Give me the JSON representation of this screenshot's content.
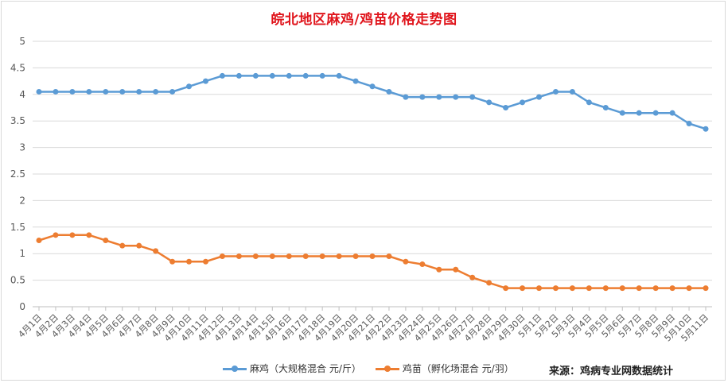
{
  "chart_data": {
    "type": "line",
    "title": "皖北地区麻鸡/鸡苗价格走势图",
    "xlabel": "",
    "ylabel": "",
    "ylim": [
      0,
      5
    ],
    "yticks": [
      "0",
      "0.5",
      "1",
      "1.5",
      "2",
      "2.5",
      "3",
      "3.5",
      "4",
      "4.5",
      "5"
    ],
    "grid": true,
    "legend_position": "bottom",
    "categories": [
      "4月1日",
      "4月2日",
      "4月3日",
      "4月4日",
      "4月5日",
      "4月6日",
      "4月7日",
      "4月8日",
      "4月9日",
      "4月10日",
      "4月11日",
      "4月12日",
      "4月13日",
      "4月14日",
      "4月15日",
      "4月16日",
      "4月17日",
      "4月18日",
      "4月19日",
      "4月20日",
      "4月21日",
      "4月22日",
      "4月23日",
      "4月24日",
      "4月25日",
      "4月26日",
      "4月27日",
      "4月28日",
      "4月29日",
      "4月30日",
      "5月1日",
      "5月2日",
      "5月3日",
      "5月4日",
      "5月5日",
      "5月6日",
      "5月7日",
      "5月8日",
      "5月9日",
      "5月10日",
      "5月11日"
    ],
    "series": [
      {
        "name": "麻鸡（大规格混合 元/斤）",
        "color": "#5b9bd5",
        "values": [
          4.05,
          4.05,
          4.05,
          4.05,
          4.05,
          4.05,
          4.05,
          4.05,
          4.05,
          4.15,
          4.25,
          4.35,
          4.35,
          4.35,
          4.35,
          4.35,
          4.35,
          4.35,
          4.35,
          4.25,
          4.15,
          4.05,
          3.95,
          3.95,
          3.95,
          3.95,
          3.95,
          3.85,
          3.75,
          3.85,
          3.95,
          4.05,
          4.05,
          3.85,
          3.75,
          3.65,
          3.65,
          3.65,
          3.65,
          3.45,
          3.35
        ]
      },
      {
        "name": "鸡苗（孵化场混合 元/羽）",
        "color": "#ed7d31",
        "values": [
          1.25,
          1.35,
          1.35,
          1.35,
          1.25,
          1.15,
          1.15,
          1.05,
          0.85,
          0.85,
          0.85,
          0.95,
          0.95,
          0.95,
          0.95,
          0.95,
          0.95,
          0.95,
          0.95,
          0.95,
          0.95,
          0.95,
          0.85,
          0.8,
          0.7,
          0.7,
          0.55,
          0.45,
          0.35,
          0.35,
          0.35,
          0.35,
          0.35,
          0.35,
          0.35,
          0.35,
          0.35,
          0.35,
          0.35,
          0.35,
          0.35
        ]
      }
    ]
  },
  "source": "来源：鸡病专业网数据统计"
}
